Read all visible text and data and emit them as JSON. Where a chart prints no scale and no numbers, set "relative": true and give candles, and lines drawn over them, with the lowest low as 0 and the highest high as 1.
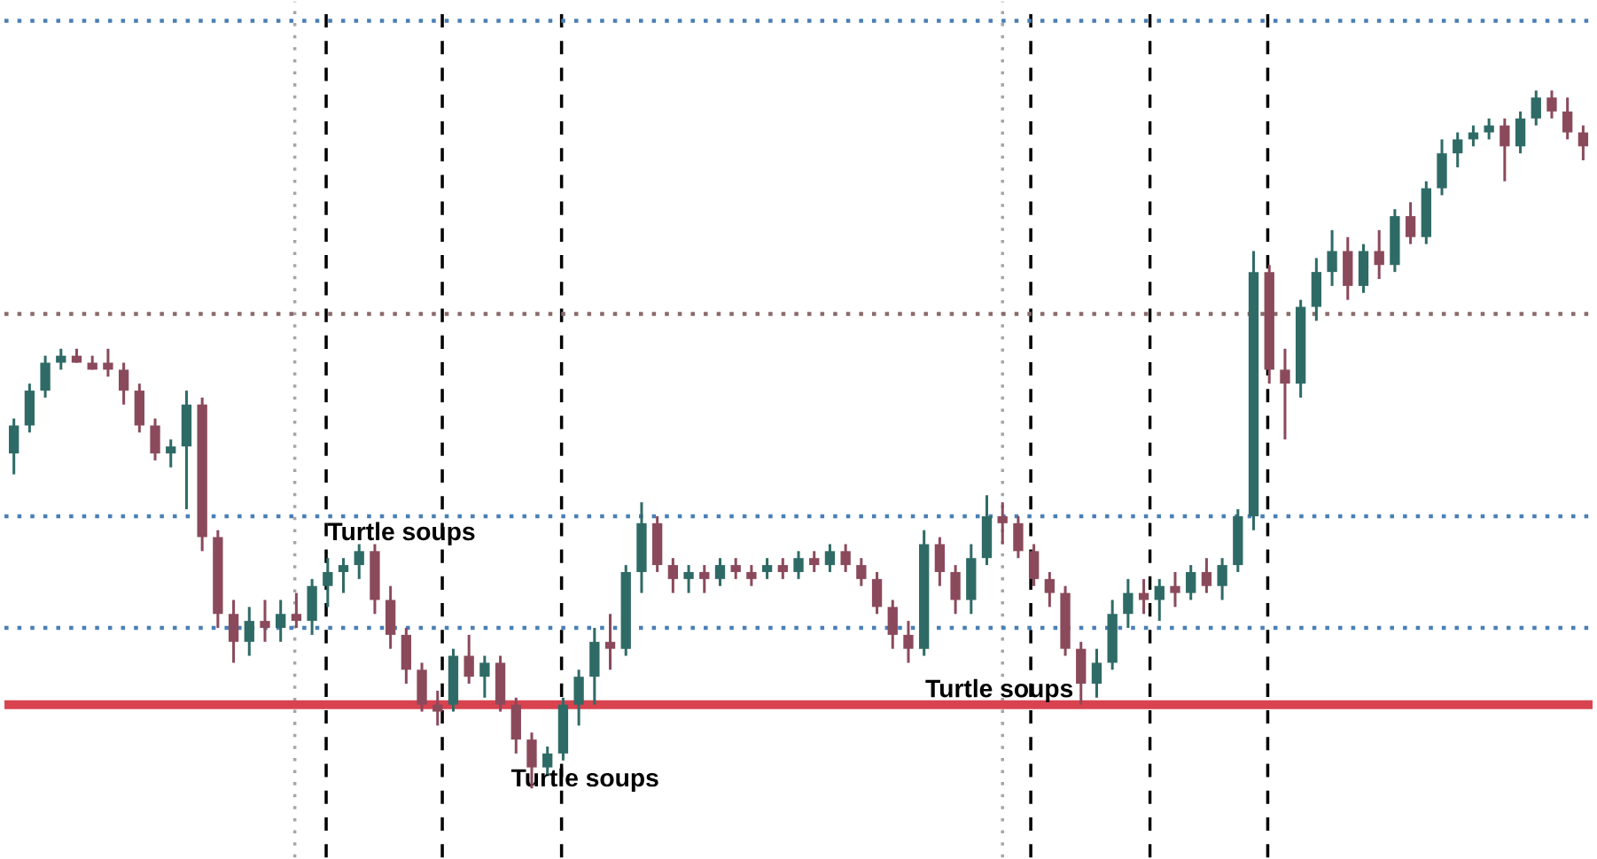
{
  "chart_data": {
    "type": "candlestick",
    "relative": true,
    "categories": [
      null,
      null,
      null,
      null,
      null,
      null,
      null,
      null,
      null,
      null,
      null,
      null,
      null,
      null,
      null,
      null,
      null,
      null,
      null,
      null,
      null,
      null,
      null,
      null,
      null,
      null,
      null,
      null,
      null,
      null,
      null,
      null,
      null,
      null,
      null,
      null,
      null,
      null,
      null,
      null,
      null,
      null,
      null,
      null,
      null,
      null,
      null,
      null,
      null,
      null,
      null,
      null,
      null,
      null,
      null,
      null,
      null,
      null,
      null,
      null,
      null,
      null,
      null,
      null,
      null,
      null,
      null,
      null,
      null,
      null,
      null,
      null,
      null,
      null,
      null,
      null,
      null,
      null,
      null,
      null,
      null,
      null,
      null,
      null,
      null,
      null,
      null,
      null,
      null,
      null,
      null,
      null,
      null,
      null,
      null,
      null,
      null,
      null,
      null,
      null,
      null
    ],
    "ohlc": [
      [
        0.48,
        0.53,
        0.45,
        0.52
      ],
      [
        0.52,
        0.58,
        0.51,
        0.57
      ],
      [
        0.57,
        0.62,
        0.56,
        0.61
      ],
      [
        0.61,
        0.63,
        0.6,
        0.62
      ],
      [
        0.62,
        0.63,
        0.61,
        0.61
      ],
      [
        0.61,
        0.62,
        0.6,
        0.6
      ],
      [
        0.61,
        0.63,
        0.59,
        0.6
      ],
      [
        0.6,
        0.61,
        0.55,
        0.57
      ],
      [
        0.57,
        0.58,
        0.51,
        0.52
      ],
      [
        0.52,
        0.53,
        0.47,
        0.48
      ],
      [
        0.48,
        0.5,
        0.46,
        0.49
      ],
      [
        0.49,
        0.57,
        0.4,
        0.55
      ],
      [
        0.55,
        0.56,
        0.34,
        0.36
      ],
      [
        0.36,
        0.37,
        0.23,
        0.25
      ],
      [
        0.25,
        0.27,
        0.18,
        0.21
      ],
      [
        0.21,
        0.26,
        0.19,
        0.24
      ],
      [
        0.24,
        0.27,
        0.21,
        0.23
      ],
      [
        0.23,
        0.27,
        0.21,
        0.25
      ],
      [
        0.25,
        0.28,
        0.23,
        0.24
      ],
      [
        0.24,
        0.3,
        0.22,
        0.29
      ],
      [
        0.29,
        0.33,
        0.26,
        0.31
      ],
      [
        0.31,
        0.33,
        0.28,
        0.32
      ],
      [
        0.32,
        0.35,
        0.3,
        0.34
      ],
      [
        0.34,
        0.35,
        0.25,
        0.27
      ],
      [
        0.27,
        0.29,
        0.2,
        0.22
      ],
      [
        0.22,
        0.23,
        0.15,
        0.17
      ],
      [
        0.17,
        0.18,
        0.11,
        0.12
      ],
      [
        0.12,
        0.14,
        0.09,
        0.11
      ],
      [
        0.12,
        0.2,
        0.11,
        0.19
      ],
      [
        0.19,
        0.22,
        0.15,
        0.16
      ],
      [
        0.16,
        0.19,
        0.13,
        0.18
      ],
      [
        0.18,
        0.19,
        0.11,
        0.12
      ],
      [
        0.12,
        0.13,
        0.05,
        0.07
      ],
      [
        0.07,
        0.08,
        0.0,
        0.03
      ],
      [
        0.03,
        0.06,
        0.02,
        0.05
      ],
      [
        0.05,
        0.13,
        0.04,
        0.12
      ],
      [
        0.12,
        0.17,
        0.09,
        0.16
      ],
      [
        0.16,
        0.23,
        0.12,
        0.21
      ],
      [
        0.21,
        0.25,
        0.17,
        0.2
      ],
      [
        0.2,
        0.32,
        0.19,
        0.31
      ],
      [
        0.31,
        0.41,
        0.28,
        0.38
      ],
      [
        0.38,
        0.39,
        0.31,
        0.32
      ],
      [
        0.32,
        0.33,
        0.28,
        0.3
      ],
      [
        0.3,
        0.32,
        0.28,
        0.31
      ],
      [
        0.31,
        0.32,
        0.28,
        0.3
      ],
      [
        0.3,
        0.33,
        0.29,
        0.32
      ],
      [
        0.32,
        0.33,
        0.3,
        0.31
      ],
      [
        0.31,
        0.32,
        0.29,
        0.3
      ],
      [
        0.31,
        0.33,
        0.3,
        0.32
      ],
      [
        0.32,
        0.33,
        0.3,
        0.31
      ],
      [
        0.31,
        0.34,
        0.3,
        0.33
      ],
      [
        0.33,
        0.34,
        0.31,
        0.32
      ],
      [
        0.32,
        0.35,
        0.31,
        0.34
      ],
      [
        0.34,
        0.35,
        0.31,
        0.32
      ],
      [
        0.32,
        0.33,
        0.29,
        0.3
      ],
      [
        0.3,
        0.31,
        0.25,
        0.26
      ],
      [
        0.26,
        0.27,
        0.2,
        0.22
      ],
      [
        0.22,
        0.24,
        0.18,
        0.2
      ],
      [
        0.2,
        0.37,
        0.19,
        0.35
      ],
      [
        0.35,
        0.36,
        0.29,
        0.31
      ],
      [
        0.31,
        0.32,
        0.25,
        0.27
      ],
      [
        0.27,
        0.35,
        0.25,
        0.33
      ],
      [
        0.33,
        0.42,
        0.32,
        0.39
      ],
      [
        0.39,
        0.41,
        0.35,
        0.38
      ],
      [
        0.38,
        0.39,
        0.33,
        0.34
      ],
      [
        0.34,
        0.35,
        0.29,
        0.3
      ],
      [
        0.3,
        0.31,
        0.26,
        0.28
      ],
      [
        0.28,
        0.29,
        0.19,
        0.2
      ],
      [
        0.2,
        0.21,
        0.12,
        0.15
      ],
      [
        0.15,
        0.2,
        0.13,
        0.18
      ],
      [
        0.18,
        0.27,
        0.17,
        0.25
      ],
      [
        0.25,
        0.3,
        0.23,
        0.28
      ],
      [
        0.28,
        0.3,
        0.25,
        0.27
      ],
      [
        0.27,
        0.3,
        0.24,
        0.29
      ],
      [
        0.29,
        0.31,
        0.26,
        0.28
      ],
      [
        0.28,
        0.32,
        0.27,
        0.31
      ],
      [
        0.31,
        0.33,
        0.28,
        0.29
      ],
      [
        0.29,
        0.33,
        0.27,
        0.32
      ],
      [
        0.32,
        0.4,
        0.31,
        0.39
      ],
      [
        0.39,
        0.77,
        0.37,
        0.74
      ],
      [
        0.74,
        0.75,
        0.58,
        0.6
      ],
      [
        0.6,
        0.63,
        0.5,
        0.58
      ],
      [
        0.58,
        0.7,
        0.56,
        0.69
      ],
      [
        0.69,
        0.76,
        0.67,
        0.74
      ],
      [
        0.74,
        0.8,
        0.72,
        0.77
      ],
      [
        0.77,
        0.79,
        0.7,
        0.72
      ],
      [
        0.72,
        0.78,
        0.71,
        0.77
      ],
      [
        0.77,
        0.8,
        0.73,
        0.75
      ],
      [
        0.75,
        0.83,
        0.74,
        0.82
      ],
      [
        0.82,
        0.84,
        0.78,
        0.79
      ],
      [
        0.79,
        0.87,
        0.78,
        0.86
      ],
      [
        0.86,
        0.93,
        0.85,
        0.91
      ],
      [
        0.91,
        0.94,
        0.89,
        0.93
      ],
      [
        0.93,
        0.95,
        0.92,
        0.94
      ],
      [
        0.94,
        0.96,
        0.93,
        0.95
      ],
      [
        0.95,
        0.96,
        0.87,
        0.92
      ],
      [
        0.92,
        0.97,
        0.91,
        0.96
      ],
      [
        0.96,
        1.0,
        0.95,
        0.99
      ],
      [
        0.99,
        1.0,
        0.96,
        0.97
      ],
      [
        0.97,
        0.99,
        0.93,
        0.94
      ],
      [
        0.94,
        0.95,
        0.9,
        0.92
      ]
    ],
    "colors": [
      "#2f6b66",
      "#2f6b66",
      "#2f6b66",
      "#2f6b66",
      "#8b4a5c",
      "#8b4a5c",
      "#8b4a5c",
      "#8b4a5c",
      "#8b4a5c",
      "#8b4a5c",
      "#2f6b66",
      "#2f6b66",
      "#8b4a5c",
      "#8b4a5c",
      "#8b4a5c",
      "#2f6b66",
      "#8b4a5c",
      "#2f6b66",
      "#8b4a5c",
      "#2f6b66",
      "#2f6b66",
      "#2f6b66",
      "#2f6b66",
      "#8b4a5c",
      "#8b4a5c",
      "#8b4a5c",
      "#8b4a5c",
      "#8b4a5c",
      "#2f6b66",
      "#8b4a5c",
      "#2f6b66",
      "#8b4a5c",
      "#8b4a5c",
      "#8b4a5c",
      "#2f6b66",
      "#2f6b66",
      "#2f6b66",
      "#2f6b66",
      "#8b4a5c",
      "#2f6b66",
      "#2f6b66",
      "#8b4a5c",
      "#8b4a5c",
      "#2f6b66",
      "#8b4a5c",
      "#2f6b66",
      "#8b4a5c",
      "#8b4a5c",
      "#2f6b66",
      "#8b4a5c",
      "#2f6b66",
      "#8b4a5c",
      "#2f6b66",
      "#8b4a5c",
      "#8b4a5c",
      "#8b4a5c",
      "#8b4a5c",
      "#8b4a5c",
      "#2f6b66",
      "#8b4a5c",
      "#8b4a5c",
      "#2f6b66",
      "#2f6b66",
      "#8b4a5c",
      "#8b4a5c",
      "#8b4a5c",
      "#8b4a5c",
      "#8b4a5c",
      "#8b4a5c",
      "#2f6b66",
      "#2f6b66",
      "#2f6b66",
      "#8b4a5c",
      "#2f6b66",
      "#8b4a5c",
      "#2f6b66",
      "#8b4a5c",
      "#2f6b66",
      "#2f6b66",
      "#2f6b66",
      "#8b4a5c",
      "#8b4a5c",
      "#2f6b66",
      "#2f6b66",
      "#2f6b66",
      "#8b4a5c",
      "#2f6b66",
      "#8b4a5c",
      "#2f6b66",
      "#8b4a5c",
      "#2f6b66",
      "#2f6b66",
      "#2f6b66",
      "#2f6b66",
      "#2f6b66",
      "#8b4a5c",
      "#2f6b66",
      "#2f6b66",
      "#8b4a5c",
      "#8b4a5c",
      "#8b4a5c"
    ],
    "ref_lines": [
      {
        "axis": "y",
        "value": 0.12,
        "color": "#d9434f",
        "line_style": "solid"
      },
      {
        "axis": "y",
        "value": 1.1,
        "color": "#4a7fb5",
        "line_style": "dotted"
      },
      {
        "axis": "y",
        "value": 0.68,
        "color": "#8a6a6a",
        "line_style": "dotted"
      },
      {
        "axis": "y",
        "value": 0.23,
        "color": "#4a7fb5",
        "line_style": "dotted"
      },
      {
        "axis": "y",
        "value": 0.39,
        "color": "#4a7fb5",
        "line_style": "dotted"
      }
    ],
    "annotations": [
      "Turtle soups",
      "Turtle soups",
      "Turtle soups"
    ]
  }
}
